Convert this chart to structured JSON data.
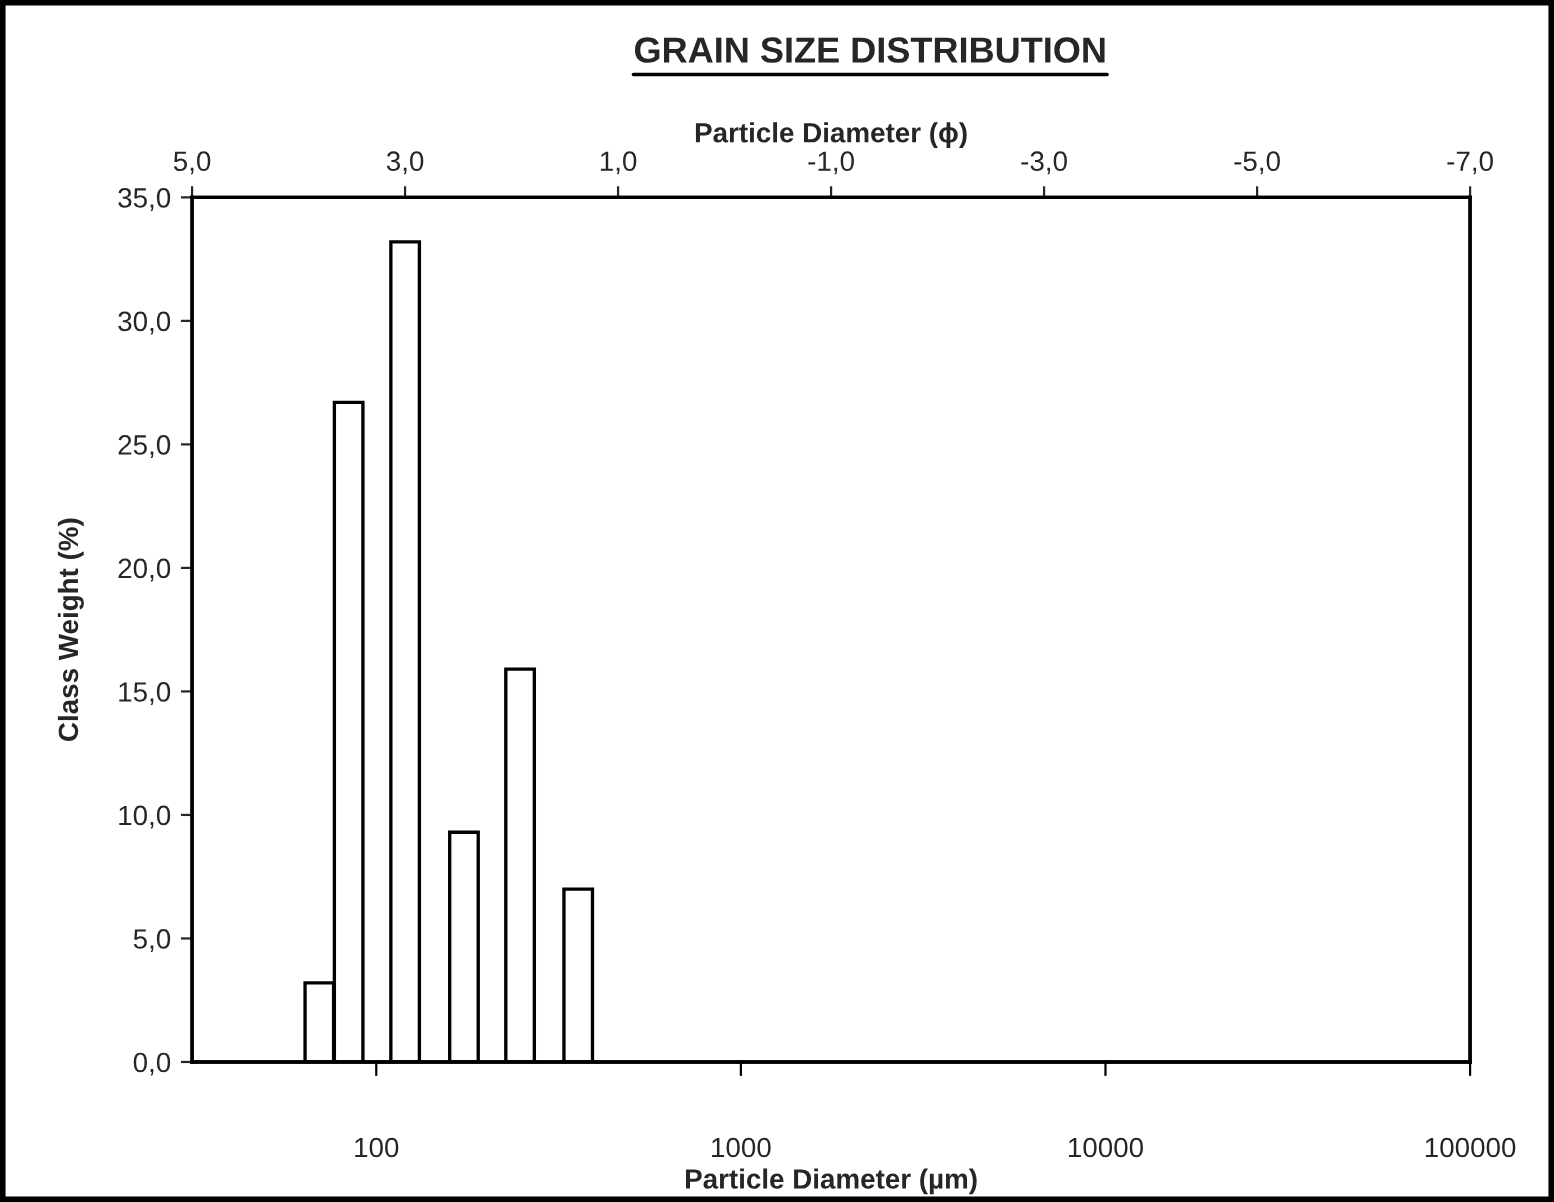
{
  "chart_data": {
    "type": "bar",
    "title": "GRAIN SIZE DISTRIBUTION",
    "xlabel": "Particle Diameter (µm)",
    "x2label": "Particle Diameter (ϕ)",
    "ylabel": "Class Weight (%)",
    "x": [
      69.8,
      84,
      120,
      174,
      248,
      358
    ],
    "values": [
      3.2,
      26.7,
      33.2,
      9.3,
      15.9,
      7.0
    ],
    "color": "#ffffff",
    "log": "x",
    "xlim": [
      31.25,
      100000
    ],
    "xticks": [
      100,
      1000,
      10000,
      100000
    ],
    "x2lim": [
      5,
      -7
    ],
    "x2ticks": [
      {
        "value": 5,
        "label": "5,0"
      },
      {
        "value": 3,
        "label": "3,0"
      },
      {
        "value": 1,
        "label": "1,0"
      },
      {
        "value": -1,
        "label": "-1,0"
      },
      {
        "value": -3,
        "label": "-3,0"
      },
      {
        "value": -5,
        "label": "-5,0"
      },
      {
        "value": -7,
        "label": "-7,0"
      }
    ],
    "ylim": [
      0,
      35
    ],
    "yticks": [
      {
        "value": 0,
        "label": "0,0"
      },
      {
        "value": 5,
        "label": "5,0"
      },
      {
        "value": 10,
        "label": "10,0"
      },
      {
        "value": 15,
        "label": "15,0"
      },
      {
        "value": 20,
        "label": "20,0"
      },
      {
        "value": 25,
        "label": "25,0"
      },
      {
        "value": 30,
        "label": "30,0"
      },
      {
        "value": 35,
        "label": "35,0"
      }
    ],
    "grid": false,
    "legend": false
  }
}
